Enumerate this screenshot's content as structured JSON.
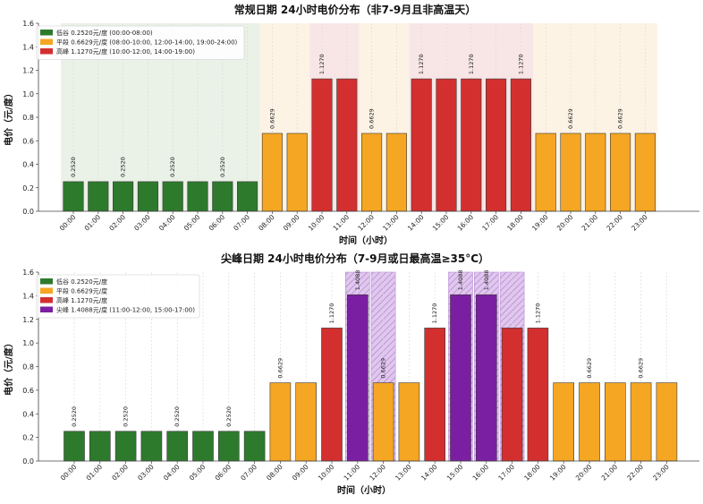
{
  "colors": {
    "valley": "#2d7a2d",
    "flat": "#f5a623",
    "peak": "#d32f2f",
    "sharp": "#7b1fa2",
    "valley_bg": "#e6efe2",
    "flat_bg": "#fdf1e1",
    "peak_bg": "#f7e2e2",
    "sharp_bg": "#dcc2ec"
  },
  "chart_data": [
    {
      "type": "bar",
      "title": "常规日期 24小时电价分布（非7-9月且非高温天）",
      "xlabel": "时间（小时）",
      "ylabel": "电价（元/度）",
      "ylim": [
        0,
        1.6
      ],
      "yticks": [
        "0.0",
        "0.2",
        "0.4",
        "0.6",
        "0.8",
        "1.0",
        "1.2",
        "1.4",
        "1.6"
      ],
      "categories": [
        "00:00",
        "01:00",
        "02:00",
        "03:00",
        "04:00",
        "05:00",
        "06:00",
        "07:00",
        "08:00",
        "09:00",
        "10:00",
        "11:00",
        "12:00",
        "13:00",
        "14:00",
        "15:00",
        "16:00",
        "17:00",
        "18:00",
        "19:00",
        "20:00",
        "21:00",
        "22:00",
        "23:00"
      ],
      "values": [
        0.252,
        0.252,
        0.252,
        0.252,
        0.252,
        0.252,
        0.252,
        0.252,
        0.6629,
        0.6629,
        1.127,
        1.127,
        0.6629,
        0.6629,
        1.127,
        1.127,
        1.127,
        1.127,
        1.127,
        0.6629,
        0.6629,
        0.6629,
        0.6629,
        0.6629
      ],
      "periods": [
        "valley",
        "valley",
        "valley",
        "valley",
        "valley",
        "valley",
        "valley",
        "valley",
        "flat",
        "flat",
        "peak",
        "peak",
        "flat",
        "flat",
        "peak",
        "peak",
        "peak",
        "peak",
        "peak",
        "flat",
        "flat",
        "flat",
        "flat",
        "flat"
      ],
      "data_labels": [
        {
          "index": 0,
          "text": "0.2520"
        },
        {
          "index": 2,
          "text": "0.2520"
        },
        {
          "index": 4,
          "text": "0.2520"
        },
        {
          "index": 6,
          "text": "0.2520"
        },
        {
          "index": 8,
          "text": "0.6629"
        },
        {
          "index": 10,
          "text": "1.1270"
        },
        {
          "index": 12,
          "text": "0.6629"
        },
        {
          "index": 14,
          "text": "1.1270"
        },
        {
          "index": 16,
          "text": "1.1270"
        },
        {
          "index": 18,
          "text": "1.1270"
        },
        {
          "index": 20,
          "text": "0.6629"
        },
        {
          "index": 22,
          "text": "0.6629"
        }
      ],
      "legend": [
        {
          "text": "低谷 0.2520元/度 (00:00-08:00)",
          "period": "valley"
        },
        {
          "text": "平段 0.6629元/度 (08:00-10:00, 12:00-14:00, 19:00-24:00)",
          "period": "flat"
        },
        {
          "text": "高峰 1.1270元/度 (10:00-12:00, 14:00-19:00)",
          "period": "peak"
        }
      ],
      "legend_position": "top-left",
      "grid": "x",
      "shaded_spans": [
        {
          "from": 0,
          "to": 8,
          "period": "valley"
        },
        {
          "from": 8,
          "to": 10,
          "period": "flat"
        },
        {
          "from": 10,
          "to": 12,
          "period": "peak"
        },
        {
          "from": 12,
          "to": 14,
          "period": "flat"
        },
        {
          "from": 14,
          "to": 19,
          "period": "peak"
        },
        {
          "from": 19,
          "to": 24,
          "period": "flat"
        }
      ],
      "hatched_hours": []
    },
    {
      "type": "bar",
      "title": "尖峰日期 24小时电价分布（7-9月或日最高温≥35°C）",
      "xlabel": "时间（小时）",
      "ylabel": "电价（元/度）",
      "ylim": [
        0,
        1.6
      ],
      "yticks": [
        "0.0",
        "0.2",
        "0.4",
        "0.6",
        "0.8",
        "1.0",
        "1.2",
        "1.4",
        "1.6"
      ],
      "categories": [
        "00:00",
        "01:00",
        "02:00",
        "03:00",
        "04:00",
        "05:00",
        "06:00",
        "07:00",
        "08:00",
        "09:00",
        "10:00",
        "11:00",
        "12:00",
        "13:00",
        "14:00",
        "15:00",
        "16:00",
        "17:00",
        "18:00",
        "19:00",
        "20:00",
        "21:00",
        "22:00",
        "23:00"
      ],
      "values": [
        0.252,
        0.252,
        0.252,
        0.252,
        0.252,
        0.252,
        0.252,
        0.252,
        0.6629,
        0.6629,
        1.127,
        1.4088,
        0.6629,
        0.6629,
        1.127,
        1.4088,
        1.4088,
        1.127,
        1.127,
        0.6629,
        0.6629,
        0.6629,
        0.6629,
        0.6629
      ],
      "periods": [
        "valley",
        "valley",
        "valley",
        "valley",
        "valley",
        "valley",
        "valley",
        "valley",
        "flat",
        "flat",
        "peak",
        "sharp",
        "flat",
        "flat",
        "peak",
        "sharp",
        "sharp",
        "peak",
        "peak",
        "flat",
        "flat",
        "flat",
        "flat",
        "flat"
      ],
      "data_labels": [
        {
          "index": 0,
          "text": "0.2520"
        },
        {
          "index": 2,
          "text": "0.2520"
        },
        {
          "index": 4,
          "text": "0.2520"
        },
        {
          "index": 6,
          "text": "0.2520"
        },
        {
          "index": 8,
          "text": "0.6629"
        },
        {
          "index": 10,
          "text": "1.1270"
        },
        {
          "index": 11,
          "text": "1.4088"
        },
        {
          "index": 12,
          "text": "0.6629"
        },
        {
          "index": 14,
          "text": "1.1270"
        },
        {
          "index": 15,
          "text": "1.4088"
        },
        {
          "index": 16,
          "text": "1.4088"
        },
        {
          "index": 18,
          "text": "1.1270"
        },
        {
          "index": 20,
          "text": "0.6629"
        },
        {
          "index": 22,
          "text": "0.6629"
        }
      ],
      "legend": [
        {
          "text": "低谷 0.2520元/度",
          "period": "valley"
        },
        {
          "text": "平段 0.6629元/度",
          "period": "flat"
        },
        {
          "text": "高峰 1.1270元/度",
          "period": "peak"
        },
        {
          "text": "尖峰 1.4088元/度 (11:00-12:00, 15:00-17:00)",
          "period": "sharp"
        }
      ],
      "legend_position": "top-left",
      "grid": "x",
      "shaded_spans": [],
      "hatched_hours": [
        11,
        12,
        15,
        16,
        17
      ]
    }
  ]
}
